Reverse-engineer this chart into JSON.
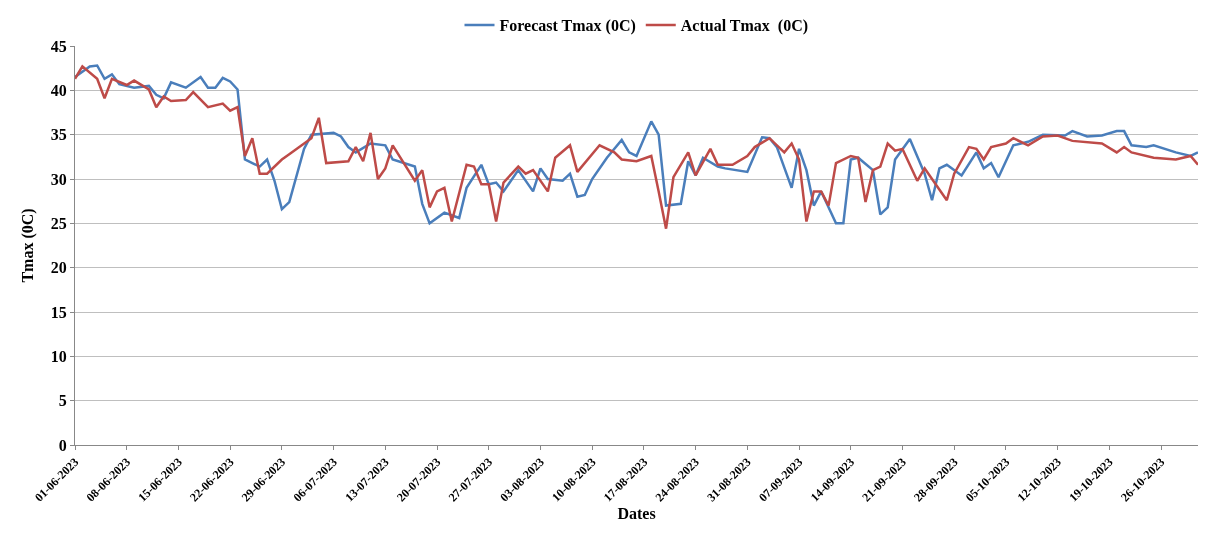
{
  "chart_data": {
    "type": "line",
    "xlabel": "Dates",
    "ylabel": "Tmax (0C)",
    "legend": "top",
    "grid": "y",
    "xlim": [
      "2023-06-01",
      "2023-10-31"
    ],
    "xticks": [
      {
        "value": "2023-06-01",
        "label": "01-06-2023"
      },
      {
        "value": "2023-06-08",
        "label": "08-06-2023"
      },
      {
        "value": "2023-06-15",
        "label": "15-06-2023"
      },
      {
        "value": "2023-06-22",
        "label": "22-06-2023"
      },
      {
        "value": "2023-06-29",
        "label": "29-06-2023"
      },
      {
        "value": "2023-07-06",
        "label": "06-07-2023"
      },
      {
        "value": "2023-07-13",
        "label": "13-07-2023"
      },
      {
        "value": "2023-07-20",
        "label": "20-07-2023"
      },
      {
        "value": "2023-07-27",
        "label": "27-07-2023"
      },
      {
        "value": "2023-08-03",
        "label": "03-08-2023"
      },
      {
        "value": "2023-08-10",
        "label": "10-08-2023"
      },
      {
        "value": "2023-08-17",
        "label": "17-08-2023"
      },
      {
        "value": "2023-08-24",
        "label": "24-08-2023"
      },
      {
        "value": "2023-08-31",
        "label": "31-08-2023"
      },
      {
        "value": "2023-09-07",
        "label": "07-09-2023"
      },
      {
        "value": "2023-09-14",
        "label": "14-09-2023"
      },
      {
        "value": "2023-09-21",
        "label": "21-09-2023"
      },
      {
        "value": "2023-09-28",
        "label": "28-09-2023"
      },
      {
        "value": "2023-10-05",
        "label": "05-10-2023"
      },
      {
        "value": "2023-10-12",
        "label": "12-10-2023"
      },
      {
        "value": "2023-10-19",
        "label": "19-10-2023"
      },
      {
        "value": "2023-10-26",
        "label": "26-10-2023"
      }
    ],
    "ylim": [
      0,
      45
    ],
    "yticks": [
      0,
      5,
      10,
      15,
      20,
      25,
      30,
      35,
      40,
      45
    ],
    "series": [
      {
        "name": "Forecast Tmax (0C)",
        "color": "#4a7ebb",
        "x": [
          "2023-06-01",
          "2023-06-03",
          "2023-06-04",
          "2023-06-05",
          "2023-06-06",
          "2023-06-07",
          "2023-06-09",
          "2023-06-11",
          "2023-06-12",
          "2023-06-13",
          "2023-06-14",
          "2023-06-16",
          "2023-06-18",
          "2023-06-19",
          "2023-06-20",
          "2023-06-21",
          "2023-06-22",
          "2023-06-23",
          "2023-06-24",
          "2023-06-25",
          "2023-06-26",
          "2023-06-27",
          "2023-06-28",
          "2023-06-29",
          "2023-06-30",
          "2023-07-02",
          "2023-07-03",
          "2023-07-06",
          "2023-07-07",
          "2023-07-08",
          "2023-07-09",
          "2023-07-11",
          "2023-07-13",
          "2023-07-14",
          "2023-07-17",
          "2023-07-18",
          "2023-07-19",
          "2023-07-21",
          "2023-07-23",
          "2023-07-24",
          "2023-07-26",
          "2023-07-27",
          "2023-07-28",
          "2023-07-29",
          "2023-07-31",
          "2023-08-02",
          "2023-08-03",
          "2023-08-04",
          "2023-08-06",
          "2023-08-07",
          "2023-08-08",
          "2023-08-09",
          "2023-08-10",
          "2023-08-12",
          "2023-08-14",
          "2023-08-15",
          "2023-08-16",
          "2023-08-18",
          "2023-08-19",
          "2023-08-20",
          "2023-08-22",
          "2023-08-23",
          "2023-08-24",
          "2023-08-25",
          "2023-08-27",
          "2023-08-28",
          "2023-08-31",
          "2023-09-02",
          "2023-09-03",
          "2023-09-04",
          "2023-09-06",
          "2023-09-07",
          "2023-09-08",
          "2023-09-09",
          "2023-09-10",
          "2023-09-12",
          "2023-09-13",
          "2023-09-14",
          "2023-09-15",
          "2023-09-17",
          "2023-09-18",
          "2023-09-19",
          "2023-09-20",
          "2023-09-22",
          "2023-09-24",
          "2023-09-25",
          "2023-09-26",
          "2023-09-27",
          "2023-09-29",
          "2023-10-01",
          "2023-10-02",
          "2023-10-03",
          "2023-10-04",
          "2023-10-06",
          "2023-10-08",
          "2023-10-10",
          "2023-10-13",
          "2023-10-14",
          "2023-10-16",
          "2023-10-18",
          "2023-10-20",
          "2023-10-21",
          "2023-10-22",
          "2023-10-24",
          "2023-10-25",
          "2023-10-28",
          "2023-10-30",
          "2023-10-31"
        ],
        "values": [
          41.5,
          42.7,
          42.8,
          41.3,
          41.8,
          40.7,
          40.3,
          40.5,
          39.5,
          39.1,
          40.9,
          40.3,
          41.5,
          40.3,
          40.3,
          41.4,
          41,
          40.1,
          32.2,
          31.8,
          31.4,
          32.2,
          29.8,
          26.6,
          27.4,
          33.4,
          35,
          35.2,
          34.8,
          33.6,
          33,
          34,
          33.8,
          32.2,
          31.4,
          27.2,
          25,
          26.2,
          25.6,
          29,
          31.6,
          29.4,
          29.6,
          28.6,
          31,
          28.6,
          31.2,
          30,
          29.8,
          30.6,
          28,
          28.2,
          30,
          32.4,
          34.4,
          33,
          32.6,
          36.5,
          35,
          27,
          27.2,
          32,
          30.4,
          32.4,
          31.4,
          31.2,
          30.8,
          34.7,
          34.6,
          33.6,
          29,
          33.4,
          31,
          27,
          28.6,
          25,
          25,
          32.2,
          32.4,
          31,
          26,
          26.8,
          32.2,
          34.5,
          30.6,
          27.6,
          31.2,
          31.6,
          30.4,
          33,
          31.2,
          31.8,
          30.2,
          33.8,
          34.2,
          35,
          34.9,
          35.4,
          34.8,
          34.9,
          35.4,
          35.4,
          33.8,
          33.6,
          33.8,
          33,
          32.6,
          33
        ]
      },
      {
        "name": "Actual Tmax  (0C)",
        "color": "#be4b48",
        "x": [
          "2023-06-01",
          "2023-06-02",
          "2023-06-04",
          "2023-06-05",
          "2023-06-06",
          "2023-06-08",
          "2023-06-09",
          "2023-06-11",
          "2023-06-12",
          "2023-06-13",
          "2023-06-14",
          "2023-06-16",
          "2023-06-17",
          "2023-06-19",
          "2023-06-21",
          "2023-06-22",
          "2023-06-23",
          "2023-06-24",
          "2023-06-25",
          "2023-06-26",
          "2023-06-27",
          "2023-06-29",
          "2023-06-30",
          "2023-07-03",
          "2023-07-04",
          "2023-07-05",
          "2023-07-08",
          "2023-07-09",
          "2023-07-10",
          "2023-07-11",
          "2023-07-12",
          "2023-07-13",
          "2023-07-14",
          "2023-07-17",
          "2023-07-18",
          "2023-07-19",
          "2023-07-20",
          "2023-07-21",
          "2023-07-22",
          "2023-07-24",
          "2023-07-25",
          "2023-07-26",
          "2023-07-27",
          "2023-07-28",
          "2023-07-29",
          "2023-07-31",
          "2023-08-01",
          "2023-08-02",
          "2023-08-04",
          "2023-08-05",
          "2023-08-07",
          "2023-08-08",
          "2023-08-11",
          "2023-08-13",
          "2023-08-14",
          "2023-08-16",
          "2023-08-18",
          "2023-08-19",
          "2023-08-20",
          "2023-08-21",
          "2023-08-23",
          "2023-08-24",
          "2023-08-26",
          "2023-08-27",
          "2023-08-29",
          "2023-08-31",
          "2023-09-01",
          "2023-09-03",
          "2023-09-05",
          "2023-09-06",
          "2023-09-07",
          "2023-09-08",
          "2023-09-09",
          "2023-09-10",
          "2023-09-11",
          "2023-09-12",
          "2023-09-14",
          "2023-09-15",
          "2023-09-16",
          "2023-09-17",
          "2023-09-18",
          "2023-09-19",
          "2023-09-20",
          "2023-09-21",
          "2023-09-23",
          "2023-09-24",
          "2023-09-25",
          "2023-09-27",
          "2023-09-28",
          "2023-09-30",
          "2023-10-01",
          "2023-10-02",
          "2023-10-03",
          "2023-10-05",
          "2023-10-06",
          "2023-10-08",
          "2023-10-10",
          "2023-10-12",
          "2023-10-14",
          "2023-10-18",
          "2023-10-20",
          "2023-10-21",
          "2023-10-22",
          "2023-10-25",
          "2023-10-28",
          "2023-10-30",
          "2023-10-31"
        ],
        "values": [
          41.3,
          42.7,
          41.3,
          39.1,
          41.3,
          40.6,
          41.1,
          40.1,
          38.1,
          39.3,
          38.8,
          38.9,
          39.8,
          38.1,
          38.5,
          37.7,
          38.1,
          32.6,
          34.6,
          30.6,
          30.6,
          32.2,
          32.8,
          34.6,
          36.9,
          31.8,
          32,
          33.6,
          32,
          35.2,
          30,
          31.2,
          33.8,
          29.8,
          31,
          26.8,
          28.6,
          29,
          25.2,
          31.6,
          31.4,
          29.4,
          29.4,
          25.2,
          29.6,
          31.4,
          30.6,
          31,
          28.6,
          32.4,
          33.8,
          30.8,
          33.8,
          33,
          32.2,
          32,
          32.6,
          28.6,
          24.4,
          30.2,
          33,
          30.4,
          33.4,
          31.6,
          31.6,
          32.6,
          33.6,
          34.6,
          33,
          34,
          32.2,
          25.2,
          28.6,
          28.6,
          27,
          31.8,
          32.6,
          32.4,
          27.4,
          31,
          31.4,
          34,
          33.2,
          33.4,
          29.8,
          31.2,
          30,
          27.6,
          30.6,
          33.6,
          33.4,
          32.2,
          33.6,
          34,
          34.6,
          33.8,
          34.8,
          34.9,
          34.3,
          34,
          33,
          33.6,
          33,
          32.4,
          32.2,
          32.6,
          31.6
        ]
      }
    ]
  }
}
